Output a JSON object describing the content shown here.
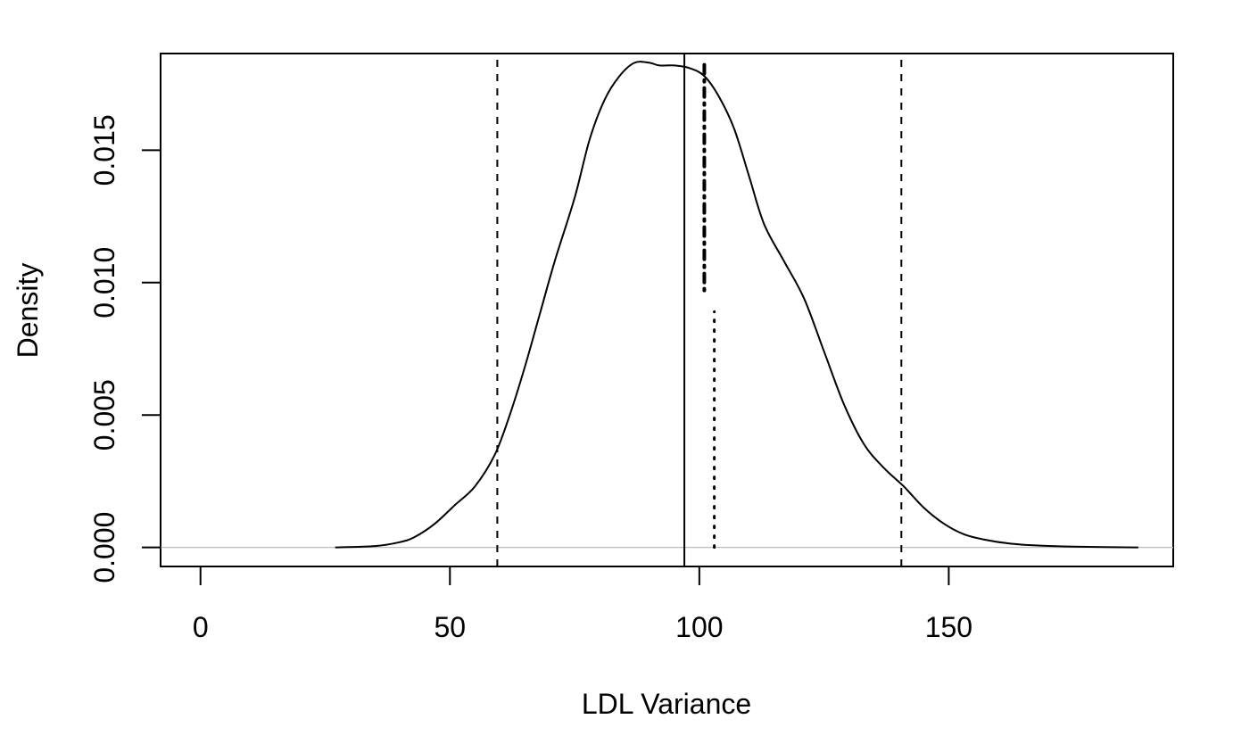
{
  "chart_data": {
    "type": "line",
    "title": "",
    "xlabel": "LDL Variance",
    "ylabel": "Density",
    "xlim": [
      -8,
      195
    ],
    "ylim": [
      -0.00072,
      0.01865
    ],
    "x_ticks": [
      0,
      50,
      100,
      150
    ],
    "x_tick_labels": [
      "0",
      "50",
      "100",
      "150"
    ],
    "y_ticks": [
      0.0,
      0.005,
      0.01,
      0.015
    ],
    "y_tick_labels": [
      "0.000",
      "0.005",
      "0.010",
      "0.015"
    ],
    "grid": false,
    "baseline": {
      "y": 0,
      "color": "#bdbdbd"
    },
    "series": [
      {
        "style": "solid",
        "color": "#000000",
        "x": [
          27,
          35,
          40,
          43,
          47,
          51,
          55,
          59,
          62,
          65,
          68,
          71,
          75,
          78,
          81,
          84,
          87,
          90,
          92,
          95,
          98,
          101,
          104,
          107,
          110,
          113,
          117,
          121,
          125,
          129,
          133,
          137,
          141,
          145,
          149,
          153,
          157,
          162,
          167,
          175,
          188
        ],
        "y": [
          0.0,
          5e-05,
          0.0002,
          0.0004,
          0.0009,
          0.0016,
          0.0023,
          0.0035,
          0.005,
          0.0068,
          0.0088,
          0.0108,
          0.0132,
          0.0154,
          0.0169,
          0.0178,
          0.0183,
          0.0183,
          0.0182,
          0.0182,
          0.0181,
          0.0178,
          0.017,
          0.0158,
          0.014,
          0.0122,
          0.0108,
          0.0094,
          0.0074,
          0.0054,
          0.0039,
          0.003,
          0.0023,
          0.0015,
          0.0009,
          0.0005,
          0.0003,
          0.00015,
          8e-05,
          3e-05,
          0.0
        ]
      }
    ],
    "vertical_lines": [
      {
        "x": 59.5,
        "style": "dashed",
        "y_to": null
      },
      {
        "x": 140.5,
        "style": "dashed",
        "y_to": null
      },
      {
        "x": 97,
        "style": "solid",
        "y_to": null
      },
      {
        "x": 101,
        "style": "dotdash",
        "y_from": 0.0097,
        "y_to": 0.0184
      },
      {
        "x": 103,
        "style": "dotted",
        "y_from": 0.0,
        "y_to": 0.0089
      }
    ]
  }
}
